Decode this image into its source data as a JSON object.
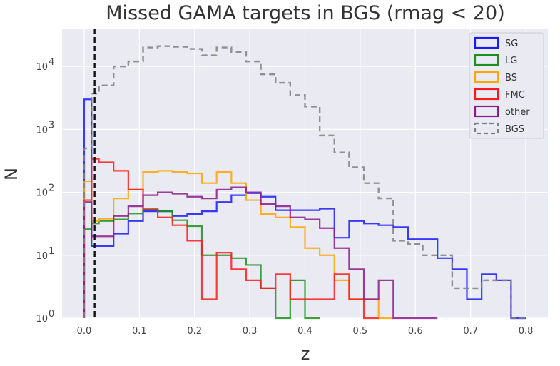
{
  "chart_data": {
    "type": "histogram-step",
    "title": "Missed GAMA targets in BGS (rmag < 20)",
    "xlabel": "z",
    "ylabel": "N",
    "xlim": [
      -0.04,
      0.84
    ],
    "ylim": [
      1,
      40000
    ],
    "yscale": "log",
    "grid": true,
    "legend_position": "top-right",
    "xticks": [
      0.0,
      0.1,
      0.2,
      0.3,
      0.4,
      0.5,
      0.6,
      0.7,
      0.8
    ],
    "xtick_labels": [
      "0.0",
      "0.1",
      "0.2",
      "0.3",
      "0.4",
      "0.5",
      "0.6",
      "0.7",
      "0.8"
    ],
    "yticks": [
      1,
      10,
      100,
      1000,
      10000
    ],
    "ytick_labels": [
      {
        "base": "10",
        "exp": "0"
      },
      {
        "base": "10",
        "exp": "1"
      },
      {
        "base": "10",
        "exp": "2"
      },
      {
        "base": "10",
        "exp": "3"
      },
      {
        "base": "10",
        "exp": "4"
      }
    ],
    "vline": {
      "x": 0.019,
      "color": "#111111",
      "style": "dashed"
    },
    "bin_edges": [
      0.0,
      0.0133,
      0.0267,
      0.0533,
      0.08,
      0.1067,
      0.1333,
      0.16,
      0.1867,
      0.2133,
      0.24,
      0.2667,
      0.2933,
      0.32,
      0.3467,
      0.3733,
      0.4,
      0.4267,
      0.4533,
      0.48,
      0.5067,
      0.5333,
      0.56,
      0.5867,
      0.6133,
      0.64,
      0.6667,
      0.6933,
      0.72,
      0.7467,
      0.7733,
      0.8
    ],
    "series": [
      {
        "name": "SG",
        "color": "#1a1aff",
        "dashed": false,
        "values": [
          3000,
          14,
          14,
          22,
          35,
          50,
          50,
          42,
          45,
          50,
          70,
          90,
          97,
          85,
          52,
          52,
          52,
          55,
          19,
          35,
          32,
          30,
          28,
          18,
          18,
          9,
          6,
          2,
          5,
          4,
          1
        ]
      },
      {
        "name": "LG",
        "color": "#1e8f1e",
        "dashed": false,
        "values": [
          26,
          32,
          35,
          37,
          46,
          54,
          50,
          36,
          29,
          10,
          10,
          9,
          7,
          3,
          1,
          4,
          1,
          null,
          null,
          null,
          null,
          null,
          null,
          null,
          null,
          null,
          null,
          null,
          null,
          null,
          null
        ]
      },
      {
        "name": "BS",
        "color": "#ffa500",
        "dashed": false,
        "values": [
          150,
          35,
          38,
          80,
          110,
          210,
          220,
          210,
          200,
          140,
          210,
          140,
          75,
          45,
          40,
          28,
          13,
          10,
          4,
          2,
          2,
          1,
          null,
          null,
          null,
          null,
          null,
          null,
          null,
          null,
          null
        ]
      },
      {
        "name": "FMC",
        "color": "#ff1a1a",
        "dashed": false,
        "values": [
          75,
          340,
          300,
          220,
          110,
          53,
          40,
          30,
          17,
          2,
          11,
          6,
          4,
          3,
          5,
          2,
          2,
          2,
          5,
          2,
          1,
          null,
          null,
          null,
          null,
          null,
          null,
          null,
          null,
          null,
          null
        ]
      },
      {
        "name": "other",
        "color": "#8b1a8b",
        "dashed": false,
        "values": [
          70,
          20,
          20,
          42,
          60,
          90,
          100,
          95,
          85,
          80,
          110,
          120,
          100,
          65,
          60,
          40,
          37,
          27,
          13,
          6,
          2,
          4,
          1,
          1,
          1,
          null,
          null,
          null,
          null,
          null,
          null
        ]
      },
      {
        "name": "BGS",
        "color": "#808080",
        "dashed": true,
        "values": [
          500,
          3700,
          5000,
          10000,
          12000,
          20000,
          21000,
          20500,
          19000,
          15000,
          20000,
          17000,
          12000,
          7500,
          5500,
          3500,
          2300,
          800,
          430,
          250,
          140,
          80,
          17,
          15,
          10,
          10,
          3,
          3,
          4,
          4,
          1
        ]
      }
    ]
  }
}
